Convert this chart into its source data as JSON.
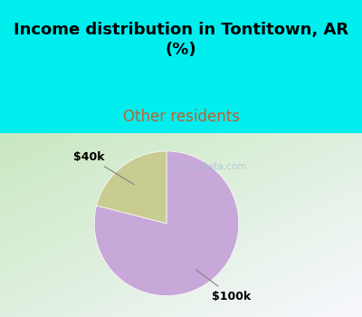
{
  "title": "Income distribution in Tontitown, AR\n(%)",
  "subtitle": "Other residents",
  "slices": [
    {
      "label": "$100k",
      "value": 79,
      "color": "#c8a8d8"
    },
    {
      "label": "$40k",
      "value": 21,
      "color": "#c8cc90"
    }
  ],
  "title_fontsize": 13,
  "subtitle_fontsize": 12,
  "subtitle_color": "#c06030",
  "title_color": "#000000",
  "bg_top_color": "#00eeee",
  "watermark": "City-Data.com",
  "startangle": 90
}
